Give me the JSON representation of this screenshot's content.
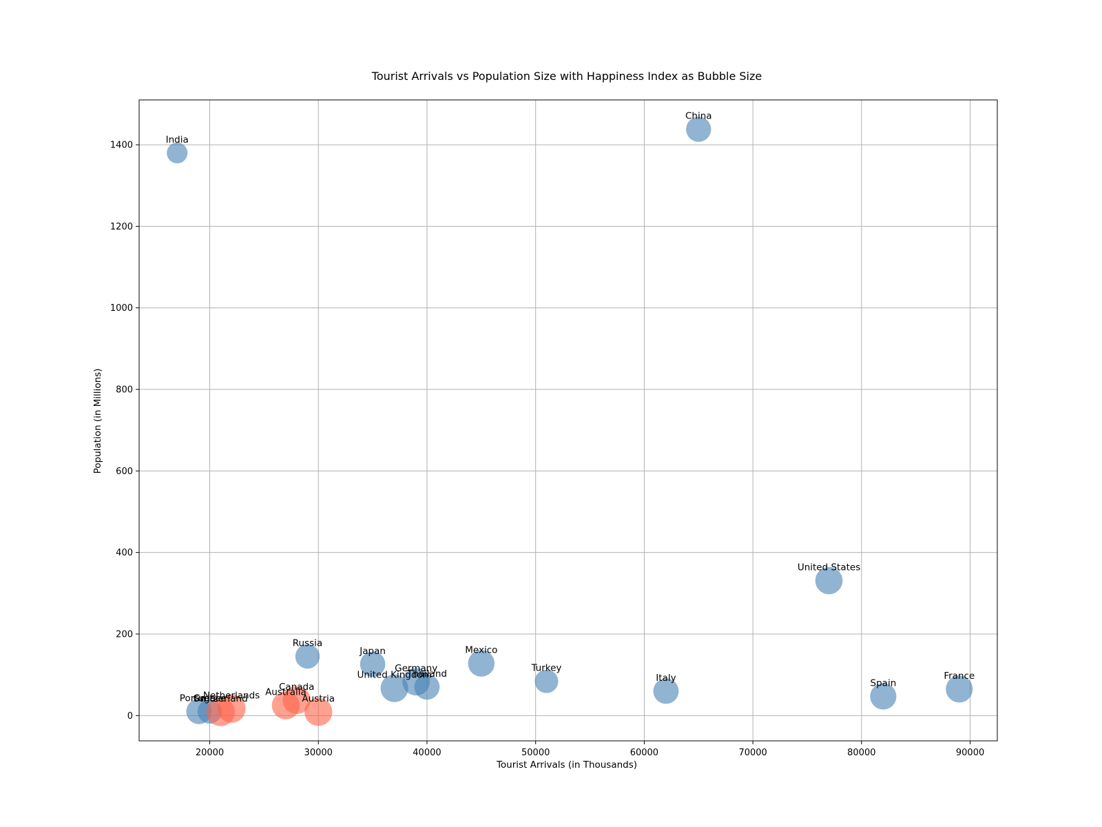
{
  "chart_data": {
    "type": "scatter",
    "title": "Tourist Arrivals vs Population Size with Happiness Index as Bubble Size",
    "xlabel": "Tourist Arrivals (in Thousands)",
    "ylabel": "Population (in Millions)",
    "xlim": [
      13500,
      92500
    ],
    "ylim": [
      -62,
      1510
    ],
    "xticks": [
      20000,
      30000,
      40000,
      50000,
      60000,
      70000,
      80000,
      90000
    ],
    "yticks": [
      0,
      200,
      400,
      600,
      800,
      1000,
      1200,
      1400
    ],
    "grid": true,
    "size_encoding": "Happiness Index",
    "colors": {
      "default": "#4682b4",
      "highlight": "#ff6347"
    },
    "points": [
      {
        "label": "France",
        "x": 89000,
        "y": 65,
        "size": 6.7,
        "color": "#4682b4"
      },
      {
        "label": "Spain",
        "x": 82000,
        "y": 47,
        "size": 6.4,
        "color": "#4682b4"
      },
      {
        "label": "United States",
        "x": 77000,
        "y": 331,
        "size": 6.9,
        "color": "#4682b4"
      },
      {
        "label": "China",
        "x": 65000,
        "y": 1438,
        "size": 5.8,
        "color": "#4682b4"
      },
      {
        "label": "Italy",
        "x": 62000,
        "y": 60,
        "size": 6.0,
        "color": "#4682b4"
      },
      {
        "label": "Turkey",
        "x": 51000,
        "y": 84,
        "size": 5.1,
        "color": "#4682b4"
      },
      {
        "label": "Mexico",
        "x": 45000,
        "y": 128,
        "size": 6.5,
        "color": "#4682b4"
      },
      {
        "label": "Thailand",
        "x": 40000,
        "y": 70,
        "size": 5.9,
        "color": "#4682b4"
      },
      {
        "label": "Germany",
        "x": 39000,
        "y": 83,
        "size": 7.0,
        "color": "#4682b4"
      },
      {
        "label": "United Kingdom",
        "x": 37000,
        "y": 67,
        "size": 7.1,
        "color": "#4682b4"
      },
      {
        "label": "Japan",
        "x": 35000,
        "y": 126,
        "size": 5.9,
        "color": "#4682b4"
      },
      {
        "label": "Russia",
        "x": 29000,
        "y": 145,
        "size": 5.5,
        "color": "#4682b4"
      },
      {
        "label": "India",
        "x": 17000,
        "y": 1380,
        "size": 4.0,
        "color": "#4682b4"
      },
      {
        "label": "Portugal",
        "x": 19000,
        "y": 10,
        "size": 5.9,
        "color": "#4682b4"
      },
      {
        "label": "Greece",
        "x": 20000,
        "y": 10,
        "size": 5.5,
        "color": "#4682b4"
      },
      {
        "label": "Austria",
        "x": 30000,
        "y": 9,
        "size": 7.2,
        "color": "#ff6347"
      },
      {
        "label": "Canada",
        "x": 28000,
        "y": 38,
        "size": 7.2,
        "color": "#ff6347"
      },
      {
        "label": "Australia",
        "x": 27000,
        "y": 25,
        "size": 7.2,
        "color": "#ff6347"
      },
      {
        "label": "Netherlands",
        "x": 22000,
        "y": 17,
        "size": 7.4,
        "color": "#ff6347"
      },
      {
        "label": "Switzerland",
        "x": 21000,
        "y": 9,
        "size": 7.5,
        "color": "#ff6347"
      }
    ]
  }
}
